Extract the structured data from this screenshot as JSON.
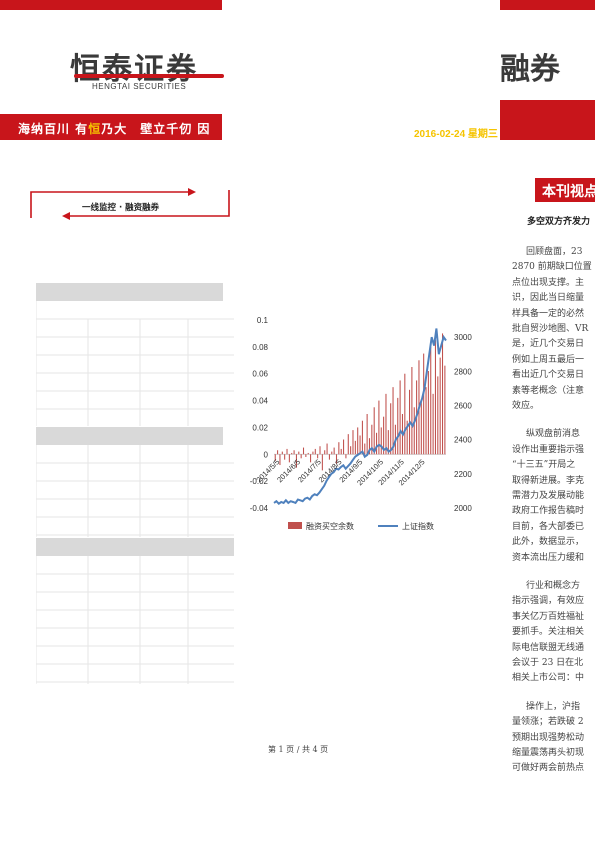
{
  "header": {
    "logo_text": "恒泰证券",
    "logo_subtext": "HENGTAI SECURITIES",
    "logo_right_text": "融券",
    "slogan_parts": [
      "海纳百川 有",
      "恒",
      "乃大　壁立千仞 因"
    ],
    "date": "2016-02-24 星期三"
  },
  "section": {
    "label": "一线监控 · 融资融券"
  },
  "feature": {
    "title": "本刊视点",
    "heading": "多空双方齐发力"
  },
  "article": {
    "paragraphs": [
      [
        "回顾盘面，23",
        "2870 前期缺口位置",
        "点位出现支撑。主",
        "识，因此当日缩量",
        "样具备一定的必然",
        "批自贸沙地图、VR",
        "是，近几个交易日",
        "例如上周五最后一",
        "看出近几个交易日",
        "素等老概念（注意",
        "效应。"
      ],
      [
        "纵观盘前消息",
        "设作出重要指示强",
        "“十三五”开局之",
        "取得新进展。李克",
        "需潜力及发展动能",
        "政府工作报告稿时",
        "目前，各大部委已",
        "此外，数据显示，",
        "资本流出压力缓和"
      ],
      [
        "行业和概念方",
        "指示强调，有效应",
        "事关亿万百姓福祉",
        "要抓手。关注相关",
        "际电信联盟无线通",
        "会议于 23 日在北",
        "相关上市公司：中"
      ],
      [
        "操作上，沪指",
        "量领涨；若跌破 2",
        "预期出现强势松动",
        "缩量震荡再头初现",
        "可做好两会前热点"
      ]
    ]
  },
  "tables": [
    {
      "name": "table-1",
      "header": ""
    },
    {
      "name": "table-2",
      "header": ""
    },
    {
      "name": "table-3",
      "header": ""
    }
  ],
  "chart_data": {
    "type": "bar+line",
    "title": "",
    "x_tick_labels": [
      "2014/5/5",
      "2014/6/5",
      "2014/7/5",
      "2014/8/5",
      "2014/9/5",
      "2014/10/5",
      "2014/11/5",
      "2014/12/5"
    ],
    "y_left": {
      "ticks": [
        "0.1",
        "0.08",
        "0.06",
        "0.04",
        "0.02",
        "0",
        "-0.02",
        "-0.04"
      ],
      "range": [
        -0.04,
        0.1
      ]
    },
    "y_right": {
      "ticks": [
        "3000",
        "2800",
        "2600",
        "2400",
        "2200",
        "2000"
      ],
      "range": [
        2000,
        3100
      ]
    },
    "series": [
      {
        "name": "融资买空余数",
        "type": "bar",
        "color": "#c0504d",
        "values": [
          -0.005,
          0.003,
          -0.008,
          0.002,
          -0.004,
          0.004,
          -0.006,
          0.001,
          0.003,
          -0.01,
          0.002,
          -0.003,
          0.005,
          -0.002,
          0.001,
          -0.006,
          0.002,
          0.004,
          -0.003,
          0.006,
          -0.012,
          0.003,
          0.008,
          -0.004,
          0.002,
          0.005,
          -0.007,
          0.009,
          0.004,
          0.011,
          -0.003,
          0.015,
          0.006,
          0.018,
          0.01,
          0.02,
          0.014,
          0.025,
          0.008,
          0.03,
          0.012,
          0.022,
          0.035,
          0.016,
          0.04,
          0.02,
          0.028,
          0.045,
          0.018,
          0.038,
          0.05,
          0.022,
          0.042,
          0.055,
          0.03,
          0.06,
          0.025,
          0.048,
          0.065,
          0.035,
          0.055,
          0.07,
          0.04,
          0.075,
          0.05,
          0.062,
          0.08,
          0.045,
          0.085,
          0.058,
          0.072,
          0.09,
          0.066
        ]
      },
      {
        "name": "上证指数",
        "type": "line",
        "color": "#4f81bd",
        "values": [
          2030,
          2040,
          2025,
          2035,
          2030,
          2045,
          2030,
          2040,
          2035,
          2030,
          2050,
          2045,
          2040,
          2055,
          2060,
          2050,
          2070,
          2080,
          2075,
          2090,
          2110,
          2130,
          2160,
          2180,
          2200,
          2210,
          2230,
          2225,
          2240,
          2250,
          2230,
          2245,
          2260,
          2280,
          2300,
          2310,
          2320,
          2330,
          2300,
          2310,
          2340,
          2350,
          2330,
          2360,
          2370,
          2360,
          2340,
          2350,
          2330,
          2340,
          2360,
          2400,
          2420,
          2450,
          2430,
          2460,
          2480,
          2500,
          2480,
          2510,
          2550,
          2600,
          2640,
          2700,
          2800,
          2900,
          3000,
          2950,
          3050,
          2900,
          2950,
          3000,
          2980
        ]
      }
    ],
    "legend_position": "bottom"
  },
  "footer": {
    "page_text": "第 1 页 / 共 4 页"
  }
}
